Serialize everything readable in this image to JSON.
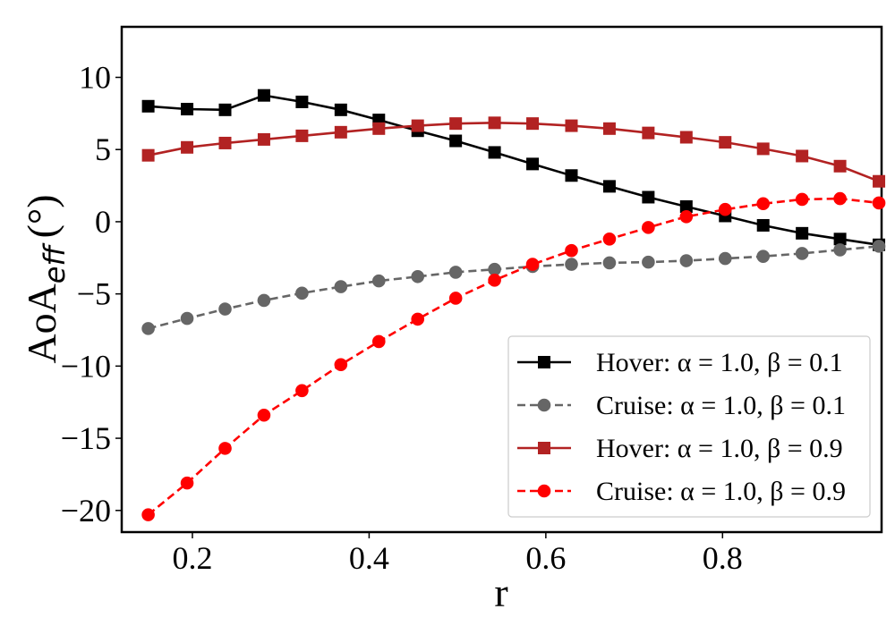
{
  "chart_data": {
    "type": "line",
    "xlabel": "r",
    "ylabel": "AoA",
    "ylabel_sub": "eff",
    "ylabel_unit": "(°)",
    "xlim": [
      0.12,
      0.98
    ],
    "ylim": [
      -21.5,
      13.5
    ],
    "x_ticks": [
      0.2,
      0.4,
      0.6,
      0.8
    ],
    "x_tick_labels": [
      "0.2",
      "0.4",
      "0.6",
      "0.8"
    ],
    "y_ticks": [
      10,
      5,
      0,
      -5,
      -10,
      -15,
      -20
    ],
    "y_tick_labels": [
      "10",
      "5",
      "0",
      "−5",
      "−10",
      "−15",
      "−20"
    ],
    "grid": false,
    "legend_position": "lower-right",
    "x": [
      0.15,
      0.194,
      0.237,
      0.281,
      0.324,
      0.368,
      0.411,
      0.455,
      0.498,
      0.542,
      0.585,
      0.629,
      0.672,
      0.716,
      0.759,
      0.803,
      0.846,
      0.89,
      0.933,
      0.977
    ],
    "series": [
      {
        "name": "Hover: α = 1.0, β = 0.1",
        "color": "#000000",
        "linestyle": "solid",
        "marker": "square",
        "values": [
          8.0,
          7.8,
          7.75,
          8.75,
          8.3,
          7.75,
          7.05,
          6.3,
          5.6,
          4.8,
          4.0,
          3.2,
          2.45,
          1.7,
          1.05,
          0.4,
          -0.25,
          -0.8,
          -1.2,
          -1.6
        ]
      },
      {
        "name": "Cruise: α = 1.0, β = 0.1",
        "color": "#666666",
        "linestyle": "dashed",
        "marker": "circle",
        "values": [
          -7.4,
          -6.7,
          -6.05,
          -5.45,
          -4.95,
          -4.5,
          -4.1,
          -3.8,
          -3.5,
          -3.3,
          -3.1,
          -2.95,
          -2.85,
          -2.8,
          -2.7,
          -2.55,
          -2.4,
          -2.2,
          -1.95,
          -1.7
        ]
      },
      {
        "name": "Hover: α = 1.0, β = 0.9",
        "color": "#b22222",
        "linestyle": "solid",
        "marker": "square",
        "values": [
          4.6,
          5.15,
          5.45,
          5.7,
          5.95,
          6.2,
          6.45,
          6.65,
          6.8,
          6.85,
          6.8,
          6.65,
          6.45,
          6.15,
          5.85,
          5.5,
          5.05,
          4.55,
          3.85,
          2.8
        ]
      },
      {
        "name": "Cruise: α = 1.0, β = 0.9",
        "color": "#ff0000",
        "linestyle": "dashed",
        "marker": "circle",
        "values": [
          -20.3,
          -18.1,
          -15.7,
          -13.4,
          -11.7,
          -9.9,
          -8.3,
          -6.75,
          -5.3,
          -4.05,
          -2.95,
          -2.0,
          -1.2,
          -0.4,
          0.35,
          0.85,
          1.25,
          1.55,
          1.6,
          1.3
        ]
      }
    ]
  }
}
